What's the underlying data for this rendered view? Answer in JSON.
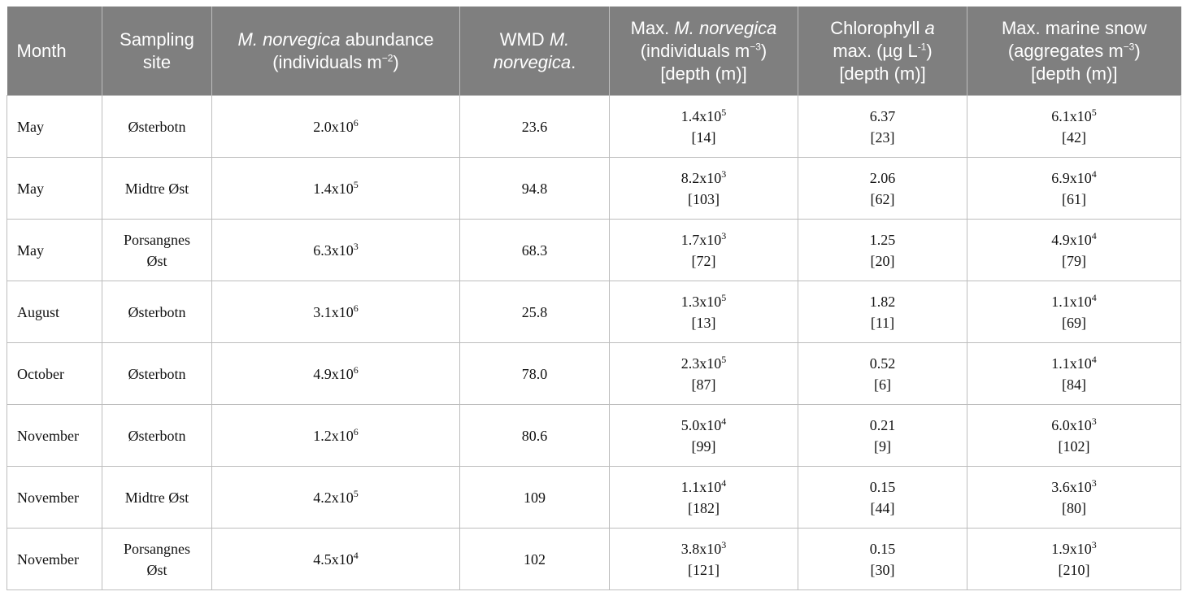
{
  "headers": {
    "month": "Month",
    "site_l1": "Sampling",
    "site_l2": "site",
    "abund_l1_italic": "M. norvegica",
    "abund_l1_rest": " abundance",
    "abund_l2_pre": "(individuals m",
    "abund_l2_sup": "−2",
    "abund_l2_post": ")",
    "wmd_l1_pre": "WMD ",
    "wmd_l1_italic": "M.",
    "wmd_l2_italic": "norvegica",
    "wmd_l2_post": ".",
    "max_l1_pre": "Max. ",
    "max_l1_italic": "M. norvegica",
    "max_l2_pre": "(individuals m",
    "max_l2_sup": "−3",
    "max_l2_post": ")",
    "max_l3": "[depth (m)]",
    "chl_l1_pre": "Chlorophyll ",
    "chl_l1_italic": "a",
    "chl_l2_pre": "max. (µg L",
    "chl_l2_sup": "-1",
    "chl_l2_post": ")",
    "chl_l3": "[depth (m)]",
    "snow_l1": "Max. marine snow",
    "snow_l2_pre": "(aggregates m",
    "snow_l2_sup": "−3",
    "snow_l2_post": ")",
    "snow_l3": "[depth (m)]"
  },
  "rows": [
    {
      "month": "May",
      "site1": "Østerbotn",
      "site2": "",
      "ab": "2.0x10",
      "ab_exp": "6",
      "wmd": "23.6",
      "mx": "1.4x10",
      "mx_exp": "5",
      "mx_d": "[14]",
      "chl": "6.37",
      "chl_d": "[23]",
      "sn": "6.1x10",
      "sn_exp": "5",
      "sn_d": "[42]"
    },
    {
      "month": "May",
      "site1": "Midtre Øst",
      "site2": "",
      "ab": "1.4x10",
      "ab_exp": "5",
      "wmd": "94.8",
      "mx": "8.2x10",
      "mx_exp": "3",
      "mx_d": "[103]",
      "chl": "2.06",
      "chl_d": "[62]",
      "sn": "6.9x10",
      "sn_exp": "4",
      "sn_d": "[61]"
    },
    {
      "month": "May",
      "site1": "Porsangnes",
      "site2": "Øst",
      "ab": "6.3x10",
      "ab_exp": "3",
      "wmd": "68.3",
      "mx": "1.7x10",
      "mx_exp": "3",
      "mx_d": "[72]",
      "chl": "1.25",
      "chl_d": "[20]",
      "sn": "4.9x10",
      "sn_exp": "4",
      "sn_d": "[79]"
    },
    {
      "month": "August",
      "site1": "Østerbotn",
      "site2": "",
      "ab": "3.1x10",
      "ab_exp": "6",
      "wmd": "25.8",
      "mx": "1.3x10",
      "mx_exp": "5",
      "mx_d": "[13]",
      "chl": "1.82",
      "chl_d": "[11]",
      "sn": "1.1x10",
      "sn_exp": "4",
      "sn_d": "[69]"
    },
    {
      "month": "October",
      "site1": "Østerbotn",
      "site2": "",
      "ab": "4.9x10",
      "ab_exp": "6",
      "wmd": "78.0",
      "mx": "2.3x10",
      "mx_exp": "5",
      "mx_d": "[87]",
      "chl": "0.52",
      "chl_d": "[6]",
      "sn": "1.1x10",
      "sn_exp": "4",
      "sn_d": "[84]"
    },
    {
      "month": "November",
      "site1": "Østerbotn",
      "site2": "",
      "ab": "1.2x10",
      "ab_exp": "6",
      "wmd": "80.6",
      "mx": "5.0x10",
      "mx_exp": "4",
      "mx_d": "[99]",
      "chl": "0.21",
      "chl_d": "[9]",
      "sn": "6.0x10",
      "sn_exp": "3",
      "sn_d": "[102]"
    },
    {
      "month": "November",
      "site1": "Midtre Øst",
      "site2": "",
      "ab": "4.2x10",
      "ab_exp": "5",
      "wmd": "109",
      "mx": "1.1x10",
      "mx_exp": "4",
      "mx_d": "[182]",
      "chl": "0.15",
      "chl_d": "[44]",
      "sn": "3.6x10",
      "sn_exp": "3",
      "sn_d": "[80]"
    },
    {
      "month": "November",
      "site1": "Porsangnes",
      "site2": "Øst",
      "ab": "4.5x10",
      "ab_exp": "4",
      "wmd": "102",
      "mx": "3.8x10",
      "mx_exp": "3",
      "mx_d": "[121]",
      "chl": "0.15",
      "chl_d": "[30]",
      "sn": "1.9x10",
      "sn_exp": "3",
      "sn_d": "[210]"
    }
  ]
}
